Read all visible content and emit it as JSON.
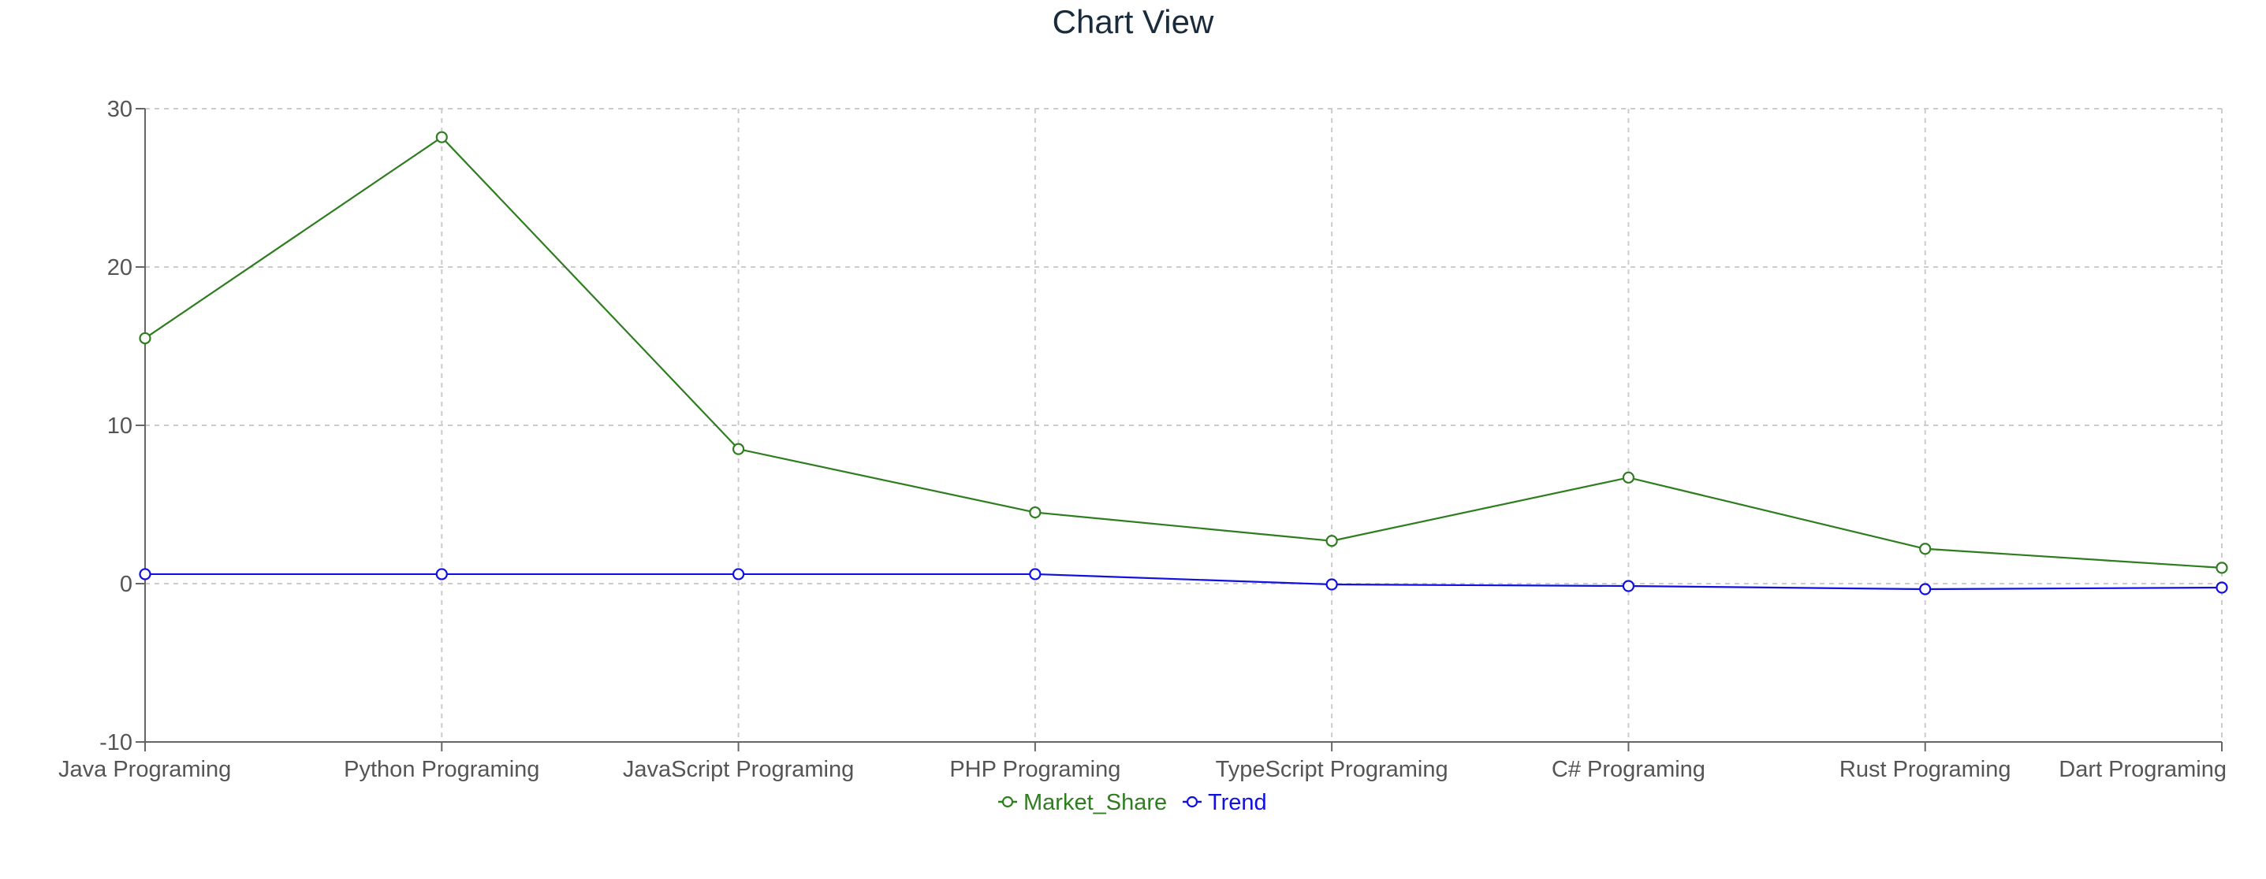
{
  "page": {
    "title": "Chart View"
  },
  "chart_data": {
    "type": "line",
    "title": "Chart View",
    "xlabel": "",
    "ylabel": "",
    "categories": [
      "Java Programing",
      "Python Programing",
      "JavaScript Programing",
      "PHP Programing",
      "TypeScript Programing",
      "C# Programing",
      "Rust Programing",
      "Dart Programing"
    ],
    "ylim": [
      -10,
      30
    ],
    "yticks": [
      -10,
      0,
      10,
      20,
      30
    ],
    "grid": true,
    "legend_position": "bottom-center",
    "series": [
      {
        "name": "Market_Share",
        "color": "#2e7d1f",
        "values": [
          15.5,
          28.2,
          8.5,
          4.5,
          2.7,
          6.7,
          2.2,
          1.0
        ]
      },
      {
        "name": "Trend",
        "color": "#1010e0",
        "values": [
          0.6,
          0.6,
          0.6,
          0.6,
          -0.05,
          -0.15,
          -0.35,
          -0.25
        ]
      }
    ]
  }
}
